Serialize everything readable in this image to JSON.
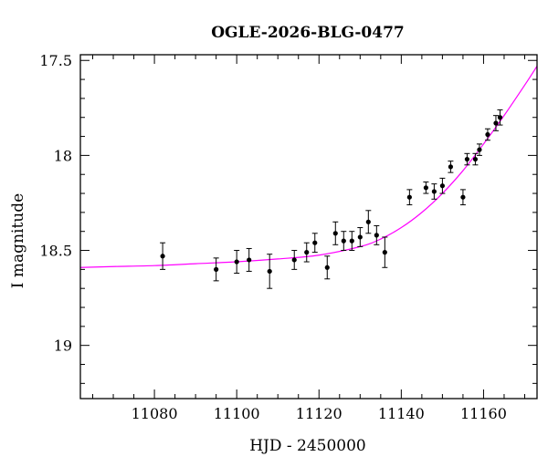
{
  "chart_data": {
    "type": "scatter",
    "title": "OGLE-2026-BLG-0477",
    "xlabel": "HJD - 2450000",
    "ylabel": "I magnitude",
    "xlim": [
      11062,
      11173
    ],
    "ylim": [
      19.28,
      17.47
    ],
    "y_inverted": true,
    "x_major_ticks": [
      11080,
      11100,
      11120,
      11140,
      11160
    ],
    "x_tick_labels": [
      "11080",
      "11100",
      "11120",
      "11140",
      "11160"
    ],
    "x_minor_step": 5,
    "y_major_ticks": [
      17.5,
      18,
      18.5,
      19
    ],
    "y_tick_labels": [
      "17.5",
      "18",
      "18.5",
      "19"
    ],
    "y_minor_step": 0.1,
    "grid": false,
    "legend": "none",
    "colors": {
      "data": "#000000",
      "model": "#ff00ff",
      "axes": "#000000"
    },
    "series": [
      {
        "kind": "points-with-errorbars",
        "points": [
          {
            "x": 11082,
            "y": 18.53,
            "err": 0.07
          },
          {
            "x": 11095,
            "y": 18.6,
            "err": 0.06
          },
          {
            "x": 11100,
            "y": 18.56,
            "err": 0.06
          },
          {
            "x": 11103,
            "y": 18.55,
            "err": 0.06
          },
          {
            "x": 11108,
            "y": 18.61,
            "err": 0.09
          },
          {
            "x": 11114,
            "y": 18.55,
            "err": 0.05
          },
          {
            "x": 11117,
            "y": 18.51,
            "err": 0.05
          },
          {
            "x": 11119,
            "y": 18.46,
            "err": 0.05
          },
          {
            "x": 11122,
            "y": 18.59,
            "err": 0.06
          },
          {
            "x": 11124,
            "y": 18.41,
            "err": 0.06
          },
          {
            "x": 11126,
            "y": 18.45,
            "err": 0.05
          },
          {
            "x": 11128,
            "y": 18.45,
            "err": 0.05
          },
          {
            "x": 11130,
            "y": 18.43,
            "err": 0.05
          },
          {
            "x": 11132,
            "y": 18.35,
            "err": 0.06
          },
          {
            "x": 11134,
            "y": 18.42,
            "err": 0.05
          },
          {
            "x": 11136,
            "y": 18.51,
            "err": 0.08
          },
          {
            "x": 11142,
            "y": 18.22,
            "err": 0.04
          },
          {
            "x": 11146,
            "y": 18.17,
            "err": 0.03
          },
          {
            "x": 11148,
            "y": 18.19,
            "err": 0.04
          },
          {
            "x": 11150,
            "y": 18.16,
            "err": 0.04
          },
          {
            "x": 11152,
            "y": 18.06,
            "err": 0.03
          },
          {
            "x": 11155,
            "y": 18.22,
            "err": 0.04
          },
          {
            "x": 11156,
            "y": 18.02,
            "err": 0.03
          },
          {
            "x": 11158,
            "y": 18.02,
            "err": 0.03
          },
          {
            "x": 11159,
            "y": 17.97,
            "err": 0.03
          },
          {
            "x": 11161,
            "y": 17.89,
            "err": 0.03
          },
          {
            "x": 11163,
            "y": 17.83,
            "err": 0.04
          },
          {
            "x": 11164,
            "y": 17.8,
            "err": 0.04
          }
        ]
      },
      {
        "kind": "model-curve",
        "x": [
          11062,
          11070,
          11080,
          11090,
          11100,
          11110,
          11120,
          11130,
          11135,
          11140,
          11145,
          11150,
          11155,
          11160,
          11165,
          11170,
          11173
        ],
        "y": [
          18.59,
          18.585,
          18.58,
          18.57,
          18.56,
          18.545,
          18.525,
          18.48,
          18.44,
          18.38,
          18.3,
          18.2,
          18.08,
          17.94,
          17.79,
          17.63,
          17.53
        ]
      }
    ]
  }
}
